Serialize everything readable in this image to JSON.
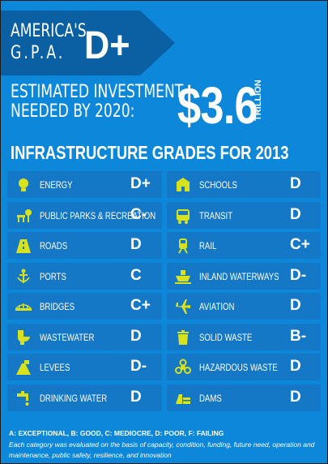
{
  "header": {
    "gpa_line1": "AMERICA'S",
    "gpa_line2": "G.P.A.",
    "gpa_grade": "D+"
  },
  "investment": {
    "line1": "ESTIMATED INVESTMENT",
    "line2": "NEEDED BY 2020:",
    "amount": "$3.6",
    "unit": "TRILLION"
  },
  "section_title": "INFRASTRUCTURE GRADES FOR 2013",
  "grades": {
    "left": [
      {
        "label": "ENERGY",
        "grade": "D+",
        "icon": "lightbulb-icon"
      },
      {
        "label": "PUBLIC PARKS & RECREATION",
        "grade": "C-",
        "icon": "park-bench-icon"
      },
      {
        "label": "ROADS",
        "grade": "D",
        "icon": "road-icon"
      },
      {
        "label": "PORTS",
        "grade": "C",
        "icon": "anchor-icon"
      },
      {
        "label": "BRIDGES",
        "grade": "C+",
        "icon": "bridge-icon"
      },
      {
        "label": "WASTEWATER",
        "grade": "D",
        "icon": "toilet-icon"
      },
      {
        "label": "LEVEES",
        "grade": "D-",
        "icon": "levee-icon"
      },
      {
        "label": "DRINKING WATER",
        "grade": "D",
        "icon": "faucet-icon"
      }
    ],
    "right": [
      {
        "label": "SCHOOLS",
        "grade": "D",
        "icon": "school-icon"
      },
      {
        "label": "TRANSIT",
        "grade": "D",
        "icon": "bus-icon"
      },
      {
        "label": "RAIL",
        "grade": "C+",
        "icon": "rail-icon"
      },
      {
        "label": "INLAND WATERWAYS",
        "grade": "D-",
        "icon": "ship-icon"
      },
      {
        "label": "AVIATION",
        "grade": "D",
        "icon": "airplane-icon"
      },
      {
        "label": "SOLID WASTE",
        "grade": "B-",
        "icon": "trash-can-icon"
      },
      {
        "label": "HAZARDOUS WASTE",
        "grade": "D",
        "icon": "biohazard-icon"
      },
      {
        "label": "DAMS",
        "grade": "D",
        "icon": "dam-icon"
      }
    ]
  },
  "footer": {
    "legend": "A: EXCEPTIONAL, B: GOOD, C: MEDIOCRE, D: POOR, F: FAILING",
    "note": "Each category was evaluated on the basis of capacity, condition, funding, future need, operation and maintenance, public safety, resilience, and innovation"
  },
  "colors": {
    "background": "#0d87d9",
    "banner": "#0b5fa3",
    "row": "#1578c7",
    "icon": "#d8e21c",
    "text": "#ffffff"
  }
}
